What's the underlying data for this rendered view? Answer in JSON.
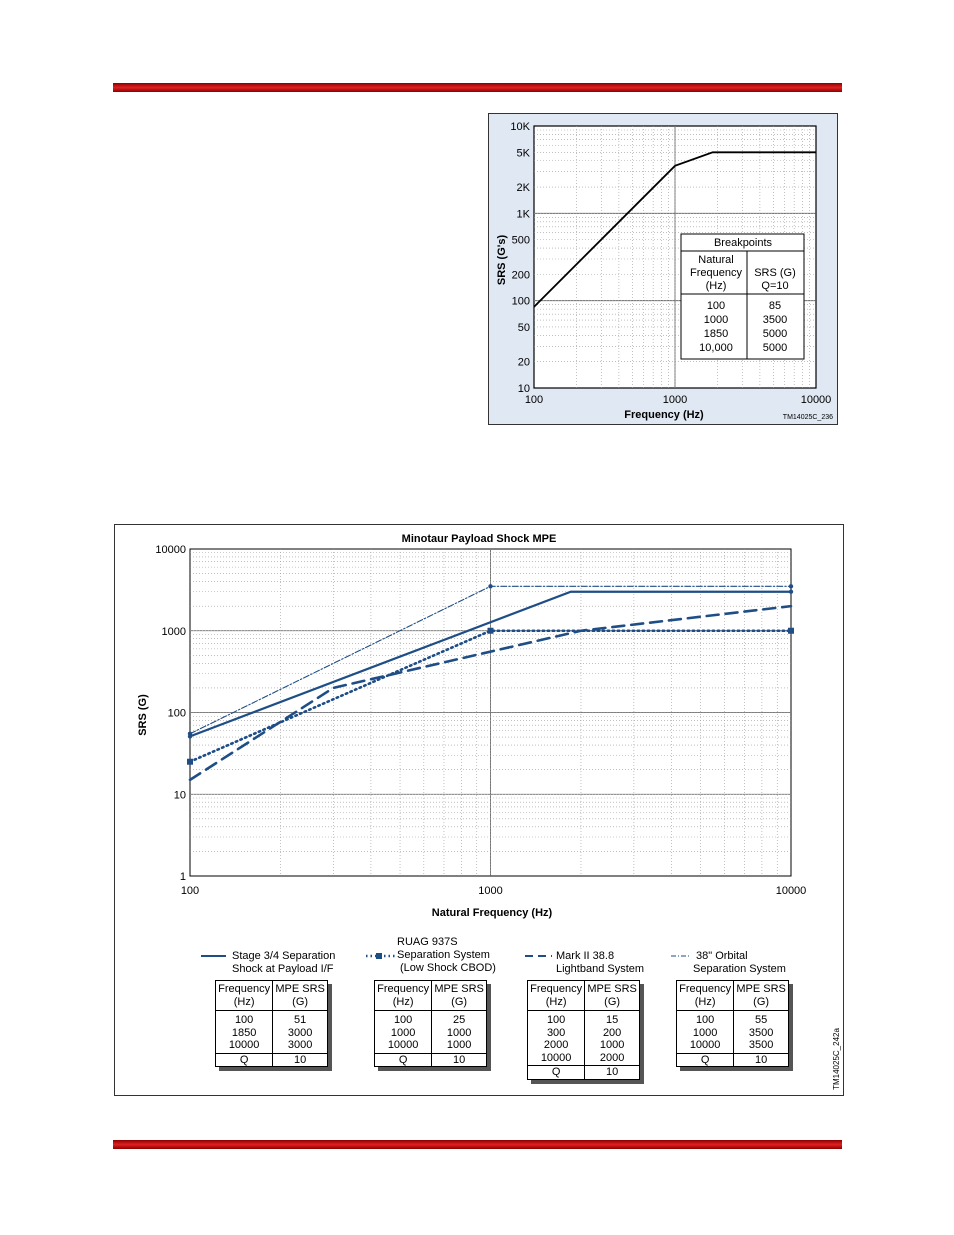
{
  "colors": {
    "accent_bar": "#cc1111",
    "series": "#1f4e87",
    "chart1_bg": "#dfe8f3"
  },
  "chart_data": [
    {
      "type": "line",
      "title": "",
      "xlabel": "Frequency (Hz)",
      "ylabel": "SRS (G's)",
      "xscale": "log",
      "yscale": "log",
      "xlim": [
        100,
        10000
      ],
      "ylim": [
        10,
        10000
      ],
      "xticks": [
        "100",
        "1000",
        "10000"
      ],
      "yticks": [
        {
          "v": 10,
          "label": "10"
        },
        {
          "v": 20,
          "label": "20"
        },
        {
          "v": 50,
          "label": "50"
        },
        {
          "v": 100,
          "label": "100"
        },
        {
          "v": 200,
          "label": "200"
        },
        {
          "v": 500,
          "label": "500"
        },
        {
          "v": 1000,
          "label": "1K"
        },
        {
          "v": 2000,
          "label": "2K"
        },
        {
          "v": 5000,
          "label": "5K"
        },
        {
          "v": 10000,
          "label": "10K"
        }
      ],
      "grid": true,
      "series": [
        {
          "x": [
            100,
            1000,
            1850,
            10000
          ],
          "y": [
            85,
            3500,
            5000,
            5000
          ]
        }
      ],
      "breakpoints_table": {
        "title": "Breakpoints",
        "col1_header": [
          "Natural",
          "Frequency",
          "(Hz)"
        ],
        "col2_header": [
          "SRS (G)",
          "Q=10"
        ],
        "col1": [
          "100",
          "1000",
          "1850",
          "10,000"
        ],
        "col2": [
          "85",
          "3500",
          "5000",
          "5000"
        ]
      },
      "figure_id": "TM14025C_236"
    },
    {
      "type": "line",
      "title": "Minotaur Payload Shock MPE",
      "xlabel": "Natural Frequency (Hz)",
      "ylabel": "SRS (G)",
      "xscale": "log",
      "yscale": "log",
      "xlim": [
        100,
        10000
      ],
      "ylim": [
        1,
        10000
      ],
      "xticks": [
        "100",
        "1000",
        "10000"
      ],
      "yticks": [
        {
          "v": 1,
          "label": "1"
        },
        {
          "v": 10,
          "label": "10"
        },
        {
          "v": 100,
          "label": "100"
        },
        {
          "v": 1000,
          "label": "1000"
        },
        {
          "v": 10000,
          "label": "10000"
        }
      ],
      "grid": true,
      "series": [
        {
          "name": "Stage 3/4  Separation Shock at Payload I/F",
          "style": "solid",
          "x": [
            100,
            1850,
            10000
          ],
          "y": [
            51,
            3000,
            3000
          ],
          "table_title": [
            "Stage 3/4  Separation",
            "Shock at Payload I/F"
          ],
          "rows": [
            [
              "100",
              "51"
            ],
            [
              "1850",
              "3000"
            ],
            [
              "10000",
              "3000"
            ]
          ],
          "q": "10"
        },
        {
          "name": "RUAG 937S Separation System (Low Shock CBOD)",
          "style": "dotted",
          "x": [
            100,
            1000,
            10000
          ],
          "y": [
            25,
            1000,
            1000
          ],
          "table_title": [
            "RUAG 937S",
            "Separation System",
            "(Low Shock CBOD)"
          ],
          "rows": [
            [
              "100",
              "25"
            ],
            [
              "1000",
              "1000"
            ],
            [
              "10000",
              "1000"
            ]
          ],
          "q": "10"
        },
        {
          "name": "Mark II 38.8 Lightband System",
          "style": "dashed",
          "x": [
            100,
            300,
            2000,
            10000
          ],
          "y": [
            15,
            200,
            1000,
            2000
          ],
          "table_title": [
            "Mark II 38.8",
            "Lightband System"
          ],
          "rows": [
            [
              "100",
              "15"
            ],
            [
              "300",
              "200"
            ],
            [
              "2000",
              "1000"
            ],
            [
              "10000",
              "2000"
            ]
          ],
          "q": "10"
        },
        {
          "name": "38\" Orbital Separation System",
          "style": "dashdot",
          "x": [
            100,
            1000,
            10000
          ],
          "y": [
            55,
            3500,
            3500
          ],
          "table_title": [
            "38\" Orbital",
            "Separation System"
          ],
          "rows": [
            [
              "100",
              "55"
            ],
            [
              "1000",
              "3500"
            ],
            [
              "10000",
              "3500"
            ]
          ],
          "q": "10"
        }
      ],
      "table_headers": {
        "freq": [
          "Frequency",
          "(Hz)"
        ],
        "mpe": [
          "MPE SRS",
          "(G)"
        ],
        "q": "Q"
      },
      "figure_id": "TM14025C_242a"
    }
  ]
}
